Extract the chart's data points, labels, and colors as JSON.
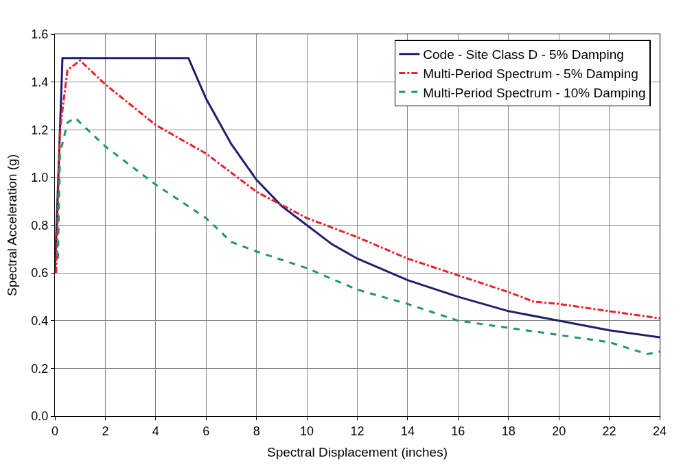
{
  "chart_data": {
    "type": "line",
    "xlabel": "Spectral Displacement (inches)",
    "ylabel": "Spectral Acceleration (g)",
    "xlim": [
      0,
      24
    ],
    "xticks": [
      0,
      2,
      4,
      6,
      8,
      10,
      12,
      14,
      16,
      18,
      20,
      22,
      24
    ],
    "ylim": [
      0,
      1.6
    ],
    "yticks": [
      {
        "value": 0,
        "label": "0.0"
      },
      {
        "value": 0.2,
        "label": "0.2"
      },
      {
        "value": 0.4,
        "label": "0.4"
      },
      {
        "value": 0.6,
        "label": "0.6"
      },
      {
        "value": 0.8,
        "label": "0.8"
      },
      {
        "value": 1.0,
        "label": "1.0"
      },
      {
        "value": 1.2,
        "label": "1.2"
      },
      {
        "value": 1.4,
        "label": "1.4"
      },
      {
        "value": 1.6,
        "label": "1.6"
      }
    ],
    "grid": true,
    "legend": "top right",
    "marker": "none",
    "series": [
      {
        "name": "Code - Site Class D - 5% Damping",
        "color": "#1f1f6e",
        "line_style": "solid",
        "x": [
          0,
          0.3,
          5.3,
          6,
          7,
          8,
          9,
          10,
          11,
          12,
          14,
          16,
          18,
          20,
          22,
          24
        ],
        "values": [
          0.6,
          1.5,
          1.5,
          1.33,
          1.14,
          0.99,
          0.88,
          0.8,
          0.72,
          0.66,
          0.57,
          0.5,
          0.44,
          0.4,
          0.36,
          0.33
        ]
      },
      {
        "name": "Multi-Period Spectrum - 5% Damping",
        "color": "#e8212b",
        "line_style": "dashdot",
        "x": [
          0.05,
          0.2,
          0.5,
          1,
          2,
          4,
          6,
          8,
          10,
          12,
          14,
          16,
          18,
          19,
          20,
          22,
          24
        ],
        "values": [
          0.6,
          1.2,
          1.45,
          1.49,
          1.39,
          1.22,
          1.1,
          0.94,
          0.83,
          0.75,
          0.66,
          0.59,
          0.52,
          0.48,
          0.47,
          0.44,
          0.41
        ]
      },
      {
        "name": "Multi-Period Spectrum - 10% Damping",
        "color": "#1e9a5a",
        "line_style": "dashed",
        "x": [
          0.12,
          0.2,
          0.5,
          0.8,
          1,
          2,
          4,
          6,
          7,
          8,
          10,
          12,
          14,
          16,
          18,
          20,
          22,
          23.5,
          24
        ],
        "values": [
          0.66,
          1.1,
          1.23,
          1.25,
          1.23,
          1.13,
          0.97,
          0.83,
          0.73,
          0.69,
          0.62,
          0.53,
          0.47,
          0.4,
          0.37,
          0.34,
          0.31,
          0.26,
          0.27
        ]
      }
    ]
  }
}
